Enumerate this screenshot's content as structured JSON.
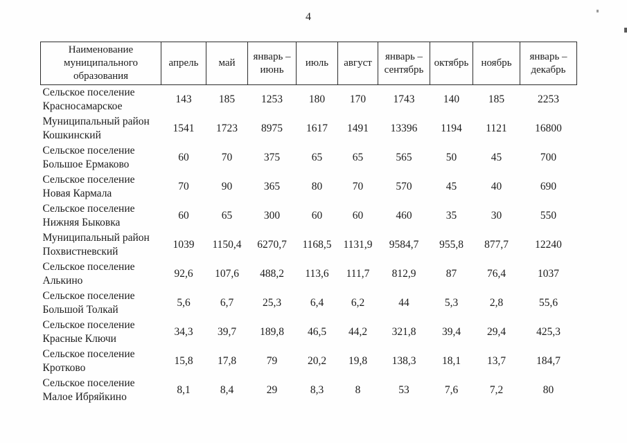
{
  "page": {
    "number": "4"
  },
  "table": {
    "name_header": "Наименование муниципального образования",
    "columns": [
      "апрель",
      "май",
      "январь – июнь",
      "июль",
      "август",
      "январь – сентябрь",
      "октябрь",
      "ноябрь",
      "январь – декабрь"
    ],
    "rows": [
      {
        "name": "Сельское поселение Красносамарское",
        "values": [
          "143",
          "185",
          "1253",
          "180",
          "170",
          "1743",
          "140",
          "185",
          "2253"
        ]
      },
      {
        "name": "Муниципальный район Кошкинский",
        "values": [
          "1541",
          "1723",
          "8975",
          "1617",
          "1491",
          "13396",
          "1194",
          "1121",
          "16800"
        ]
      },
      {
        "name": "Сельское поселение Большое Ермаково",
        "values": [
          "60",
          "70",
          "375",
          "65",
          "65",
          "565",
          "50",
          "45",
          "700"
        ]
      },
      {
        "name": "Сельское поселение Новая Кармала",
        "values": [
          "70",
          "90",
          "365",
          "80",
          "70",
          "570",
          "45",
          "40",
          "690"
        ]
      },
      {
        "name": "Сельское поселение Нижняя Быковка",
        "values": [
          "60",
          "65",
          "300",
          "60",
          "60",
          "460",
          "35",
          "30",
          "550"
        ]
      },
      {
        "name": "Муниципальный район Похвистневский",
        "values": [
          "1039",
          "1150,4",
          "6270,7",
          "1168,5",
          "1131,9",
          "9584,7",
          "955,8",
          "877,7",
          "12240"
        ]
      },
      {
        "name": "Сельское поселение Алькино",
        "values": [
          "92,6",
          "107,6",
          "488,2",
          "113,6",
          "111,7",
          "812,9",
          "87",
          "76,4",
          "1037"
        ]
      },
      {
        "name": "Сельское поселение Большой Толкай",
        "values": [
          "5,6",
          "6,7",
          "25,3",
          "6,4",
          "6,2",
          "44",
          "5,3",
          "2,8",
          "55,6"
        ]
      },
      {
        "name": "Сельское поселение Красные Ключи",
        "values": [
          "34,3",
          "39,7",
          "189,8",
          "46,5",
          "44,2",
          "321,8",
          "39,4",
          "29,4",
          "425,3"
        ]
      },
      {
        "name": "Сельское поселение Кротково",
        "values": [
          "15,8",
          "17,8",
          "79",
          "20,2",
          "19,8",
          "138,3",
          "18,1",
          "13,7",
          "184,7"
        ]
      },
      {
        "name": "Сельское поселение Малое Ибряйкино",
        "values": [
          "8,1",
          "8,4",
          "29",
          "8,3",
          "8",
          "53",
          "7,6",
          "7,2",
          "80"
        ]
      }
    ]
  }
}
